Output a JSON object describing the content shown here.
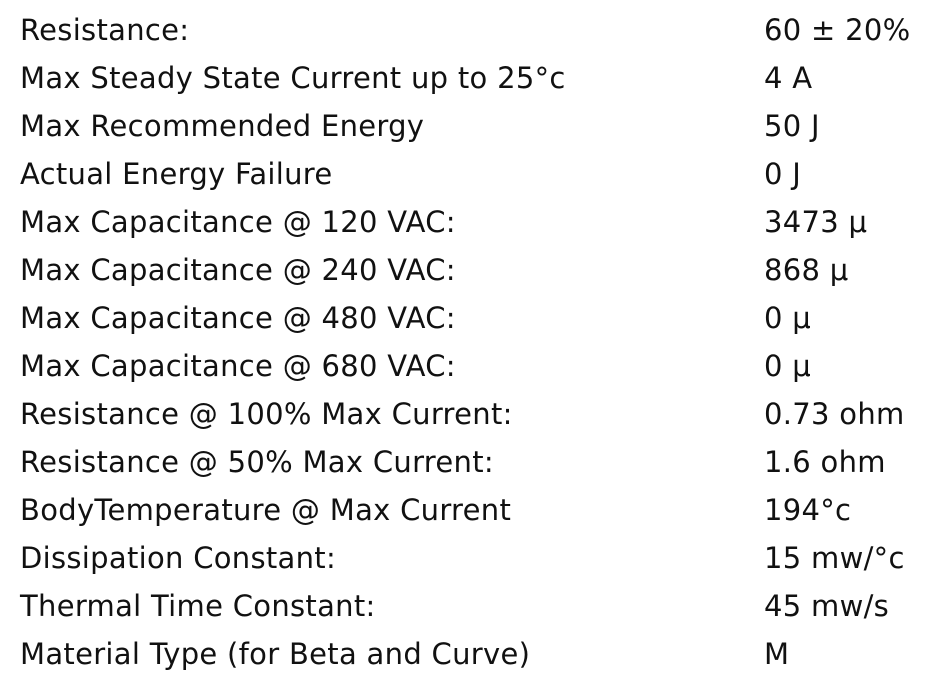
{
  "table": {
    "rows": [
      [
        "Resistance:",
        "60 ± 20%"
      ],
      [
        "Max Steady State Current up to 25°c",
        "4 A"
      ],
      [
        "Max Recommended Energy",
        "50 J"
      ],
      [
        "Actual Energy Failure",
        "0 J"
      ],
      [
        "Max Capacitance @ 120 VAC:",
        "3473 μ"
      ],
      [
        "Max Capacitance @ 240 VAC:",
        "868 μ"
      ],
      [
        "Max Capacitance @ 480 VAC:",
        "0 μ"
      ],
      [
        "Max Capacitance @ 680 VAC:",
        "0 μ"
      ],
      [
        "Resistance @ 100% Max Current:",
        "0.73 ohm"
      ],
      [
        "Resistance @ 50% Max Current:",
        "1.6 ohm"
      ],
      [
        "BodyTemperature @ Max Current",
        "194°c"
      ],
      [
        "Dissipation Constant:",
        "15 mw/°c"
      ],
      [
        "Thermal Time Constant:",
        "45 mw/s"
      ],
      [
        "Material Type (for Beta and Curve)",
        "M"
      ]
    ]
  }
}
